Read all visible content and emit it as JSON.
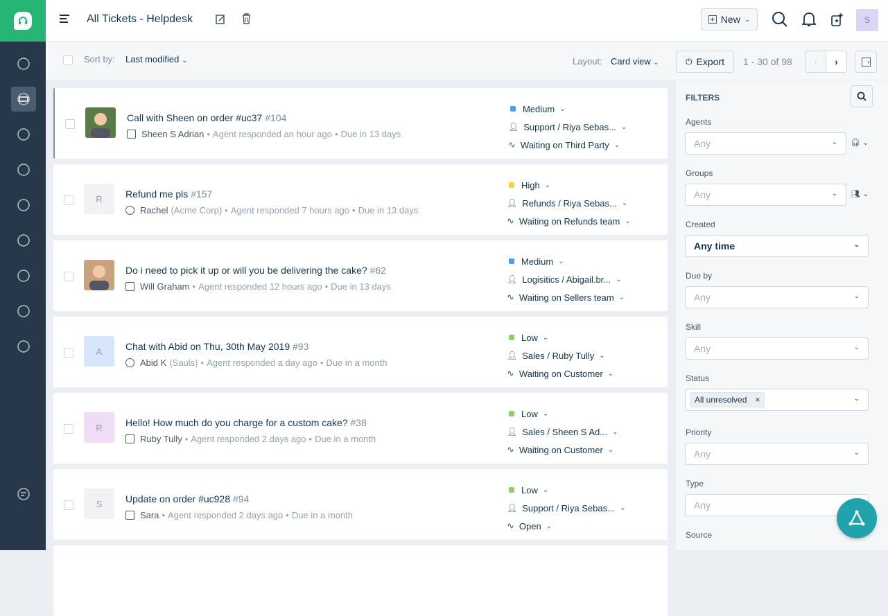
{
  "header": {
    "title": "All Tickets - Helpdesk",
    "new_label": "New",
    "avatar_initial": "S"
  },
  "toolbar": {
    "sort_label": "Sort by:",
    "sort_value": "Last modified",
    "layout_label": "Layout:",
    "layout_value": "Card view",
    "export_label": "Export",
    "pagination": "1 - 30 of 98"
  },
  "sidebar": {
    "items": [
      "dashboard-icon",
      "tickets-icon",
      "contacts-icon",
      "groups-icon",
      "knowledge-base-icon",
      "discussions-icon",
      "bot-icon",
      "reports-icon",
      "settings-icon"
    ],
    "bottom": "chat-icon"
  },
  "colors": {
    "brand": "#25b574",
    "sidebar": "#27384a",
    "medium": "#4a9df8",
    "high": "#ffd03a",
    "low": "#8cd163",
    "fab": "#20a3ad"
  },
  "tickets": [
    {
      "title": "Call with Sheen on order #uc37",
      "id": "#104",
      "source_icon": "phone-icon",
      "requester": "Sheen S Adrian",
      "company": "",
      "responded": "Agent responded an hour ago",
      "due": "Due in 13 days",
      "priority": "Medium",
      "priority_color": "#4a9df8",
      "assignee": "Support / Riya Sebas...",
      "status": "Waiting on Third Party",
      "avatar": "photo",
      "avatar_bg": "#5a7a4a"
    },
    {
      "title": "Refund me pls",
      "id": "#157",
      "source_icon": "globe-icon",
      "requester": "Rachel",
      "company": "(Acme Corp)",
      "responded": "Agent responded 7 hours ago",
      "due": "Due in 13 days",
      "priority": "High",
      "priority_color": "#ffd03a",
      "assignee": "Refunds / Riya Sebas...",
      "status": "Waiting on Refunds team",
      "avatar": "R",
      "avatar_bg": "#f1f2f4"
    },
    {
      "title": "Do i need to pick it up or will you be delivering the cake?",
      "id": "#62",
      "source_icon": "portal-icon",
      "requester": "Will Graham",
      "company": "",
      "responded": "Agent responded 12 hours ago",
      "due": "Due in 13 days",
      "priority": "Medium",
      "priority_color": "#4a9df8",
      "assignee": "Logisitics / Abigail.br...",
      "status": "Waiting on Sellers team",
      "avatar": "photo",
      "avatar_bg": "#c9a27e"
    },
    {
      "title": "Chat with Abid on Thu, 30th May 2019",
      "id": "#93",
      "source_icon": "chat-icon",
      "requester": "Abid K",
      "company": "(Sauls)",
      "responded": "Agent responded a day ago",
      "due": "Due in a month",
      "priority": "Low",
      "priority_color": "#8cd163",
      "assignee": "Sales / Ruby Tully",
      "status": "Waiting on Customer",
      "avatar": "A",
      "avatar_bg": "#d6e7fb"
    },
    {
      "title": "Hello! How much do you charge for a custom cake?",
      "id": "#38",
      "source_icon": "form-icon",
      "requester": "Ruby Tully",
      "company": "",
      "responded": "Agent responded 2 days ago",
      "due": "Due in a month",
      "priority": "Low",
      "priority_color": "#8cd163",
      "assignee": "Sales / Sheen S Ad...",
      "status": "Waiting on Customer",
      "avatar": "R",
      "avatar_bg": "#f0dcf5"
    },
    {
      "title": "Update on order #uc928",
      "id": "#94",
      "source_icon": "email-icon",
      "requester": "Sara",
      "company": "",
      "responded": "Agent responded 2 days ago",
      "due": "Due in a month",
      "priority": "Low",
      "priority_color": "#8cd163",
      "assignee": "Support / Riya Sebas...",
      "status": "Open",
      "avatar": "S",
      "avatar_bg": "#f1f2f4"
    }
  ],
  "filters": {
    "title": "FILTERS",
    "fields": [
      {
        "label": "Agents",
        "value": "Any",
        "extra": "headset-icon"
      },
      {
        "label": "Groups",
        "value": "Any",
        "extra": "group-icon"
      },
      {
        "label": "Created",
        "value": "Any time",
        "bold": true
      },
      {
        "label": "Due by",
        "value": "Any"
      },
      {
        "label": "Skill",
        "value": "Any"
      },
      {
        "label": "Status",
        "chip": "All unresolved"
      },
      {
        "label": "Priority",
        "value": "Any"
      },
      {
        "label": "Type",
        "value": "Any"
      },
      {
        "label": "Source",
        "value": ""
      }
    ]
  }
}
